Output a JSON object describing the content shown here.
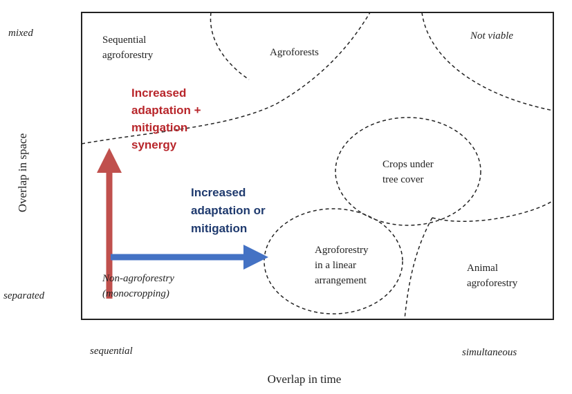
{
  "axes": {
    "y_label": "Overlap in space",
    "y_top": "mixed",
    "y_bottom": "separated",
    "x_label": "Overlap in time",
    "x_left": "sequential",
    "x_right": "simultaneous"
  },
  "regions": [
    {
      "lines": [
        "Sequential",
        "agroforestry"
      ]
    },
    {
      "lines": [
        "Agroforests"
      ]
    },
    {
      "lines": [
        "Not viable"
      ]
    },
    {
      "lines": [
        "Crops under",
        "tree cover"
      ]
    },
    {
      "lines": [
        "Agroforestry",
        "in a linear",
        "arrangement"
      ]
    },
    {
      "lines": [
        "Animal",
        "agroforestry"
      ]
    },
    {
      "lines": [
        "Non-agroforestry",
        "(monocropping)"
      ]
    }
  ],
  "arrows": [
    {
      "lines": [
        "Increased",
        "adaptation +",
        "mitigation",
        "synergy"
      ]
    },
    {
      "lines": [
        "Increased",
        "adaptation or",
        "mitigation"
      ]
    }
  ]
}
